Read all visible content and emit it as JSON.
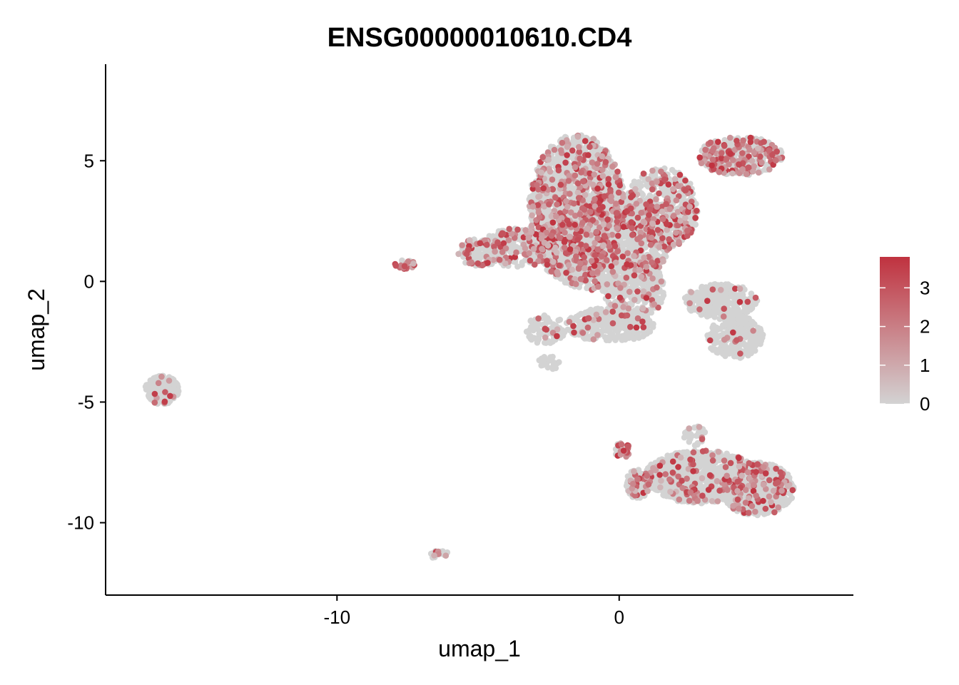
{
  "chart_data": {
    "type": "scatter",
    "title": "ENSG00000010610.CD4",
    "xlabel": "umap_1",
    "ylabel": "umap_2",
    "xlim": [
      -18.2,
      8.3
    ],
    "ylim": [
      -13.0,
      9.0
    ],
    "x_ticks": [
      -10,
      0
    ],
    "y_ticks": [
      5,
      0,
      -5,
      -10
    ],
    "x_tick_labels": [
      "-10",
      "0"
    ],
    "y_tick_labels": [
      "5",
      "0",
      "-5",
      "-10"
    ],
    "color_scale": {
      "low_color": "#d3d3d3",
      "high_color": "#c0323f",
      "min": 0,
      "max": 3.8,
      "ticks": [
        0,
        1,
        2,
        3
      ],
      "tick_labels": [
        "0",
        "1",
        "2",
        "3"
      ]
    },
    "legend_position": "right",
    "grid": false,
    "clusters": [
      {
        "cx": -1.5,
        "cy": 3.0,
        "rx": 1.7,
        "ry": 3.1,
        "n": 1500,
        "expr": 0.28
      },
      {
        "cx": -0.6,
        "cy": 1.6,
        "rx": 2.4,
        "ry": 2.0,
        "n": 1300,
        "expr": 0.15
      },
      {
        "cx": 1.5,
        "cy": 3.0,
        "rx": 1.3,
        "ry": 1.7,
        "n": 500,
        "expr": 0.28
      },
      {
        "cx": -3.6,
        "cy": 1.4,
        "rx": 1.3,
        "ry": 0.8,
        "n": 300,
        "expr": 0.2
      },
      {
        "cx": -4.9,
        "cy": 1.2,
        "rx": 0.8,
        "ry": 0.6,
        "n": 120,
        "expr": 0.25
      },
      {
        "cx": 0.5,
        "cy": -0.3,
        "rx": 1.1,
        "ry": 1.4,
        "n": 400,
        "expr": 0.12
      },
      {
        "cx": 4.3,
        "cy": 5.2,
        "rx": 1.5,
        "ry": 0.8,
        "n": 350,
        "expr": 0.4
      },
      {
        "cx": 3.6,
        "cy": -0.8,
        "rx": 1.3,
        "ry": 0.7,
        "n": 280,
        "expr": 0.04
      },
      {
        "cx": 4.1,
        "cy": -2.3,
        "rx": 1.0,
        "ry": 0.9,
        "n": 250,
        "expr": 0.03
      },
      {
        "cx": -0.3,
        "cy": -1.8,
        "rx": 1.6,
        "ry": 0.7,
        "n": 320,
        "expr": 0.08
      },
      {
        "cx": -2.6,
        "cy": -2.0,
        "rx": 0.7,
        "ry": 0.6,
        "n": 100,
        "expr": 0.04
      },
      {
        "cx": -2.5,
        "cy": -3.4,
        "rx": 0.4,
        "ry": 0.3,
        "n": 25,
        "expr": 0.1
      },
      {
        "cx": 2.9,
        "cy": -8.1,
        "rx": 2.0,
        "ry": 1.1,
        "n": 900,
        "expr": 0.12
      },
      {
        "cx": 4.9,
        "cy": -8.6,
        "rx": 1.3,
        "ry": 1.1,
        "n": 700,
        "expr": 0.14
      },
      {
        "cx": 0.7,
        "cy": -8.4,
        "rx": 0.5,
        "ry": 0.6,
        "n": 120,
        "expr": 0.2
      },
      {
        "cx": 0.1,
        "cy": -7.0,
        "rx": 0.3,
        "ry": 0.3,
        "n": 30,
        "expr": 0.6
      },
      {
        "cx": 2.7,
        "cy": -6.4,
        "rx": 0.4,
        "ry": 0.4,
        "n": 30,
        "expr": 0.05
      },
      {
        "cx": -16.2,
        "cy": -4.5,
        "rx": 0.6,
        "ry": 0.6,
        "n": 260,
        "expr": 0.06
      },
      {
        "cx": -7.6,
        "cy": 0.7,
        "rx": 0.4,
        "ry": 0.18,
        "n": 25,
        "expr": 0.6
      },
      {
        "cx": -6.4,
        "cy": -11.3,
        "rx": 0.4,
        "ry": 0.18,
        "n": 20,
        "expr": 0.3
      }
    ]
  }
}
